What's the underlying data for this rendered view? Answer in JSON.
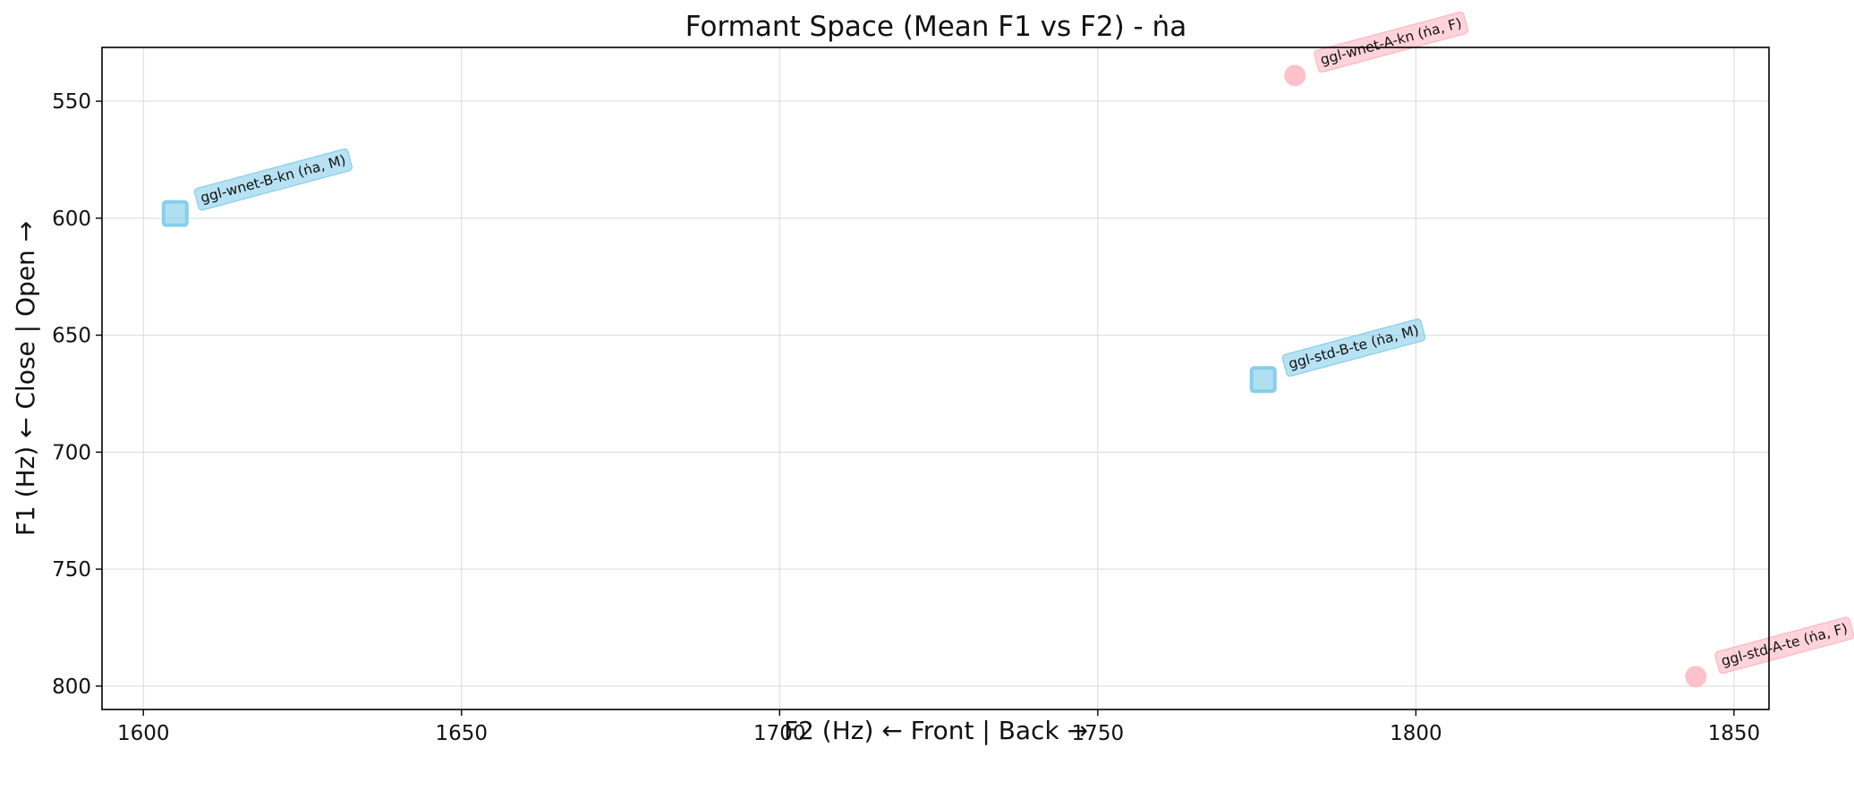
{
  "chart_data": {
    "type": "scatter",
    "title": "Formant Space (Mean F1 vs F2) - ṅa",
    "xlabel": "F2 (Hz) ← Front | Back →",
    "ylabel": "F1 (Hz) ← Close | Open →",
    "xlim": [
      1593.5,
      1855.5
    ],
    "ylim": [
      810,
      527
    ],
    "y_inverted": true,
    "grid": true,
    "x_ticks": [
      "1600",
      "1650",
      "1700",
      "1750",
      "1800",
      "1850"
    ],
    "y_ticks": [
      "550",
      "600",
      "650",
      "700",
      "750",
      "800"
    ],
    "colors": {
      "M": "#87ceeb",
      "F": "#ffb6c1"
    },
    "points": [
      {
        "label": "ggl-wnet-A-kn (ṅa, F)",
        "x": 1781,
        "y": 539,
        "gender": "F",
        "marker": "circle"
      },
      {
        "label": "ggl-wnet-B-kn (ṅa, M)",
        "x": 1605,
        "y": 598,
        "gender": "M",
        "marker": "square"
      },
      {
        "label": "ggl-std-B-te (ṅa, M)",
        "x": 1776,
        "y": 669,
        "gender": "M",
        "marker": "square"
      },
      {
        "label": "ggl-std-A-te (ṅa, F)",
        "x": 1844,
        "y": 796,
        "gender": "F",
        "marker": "circle"
      }
    ]
  }
}
